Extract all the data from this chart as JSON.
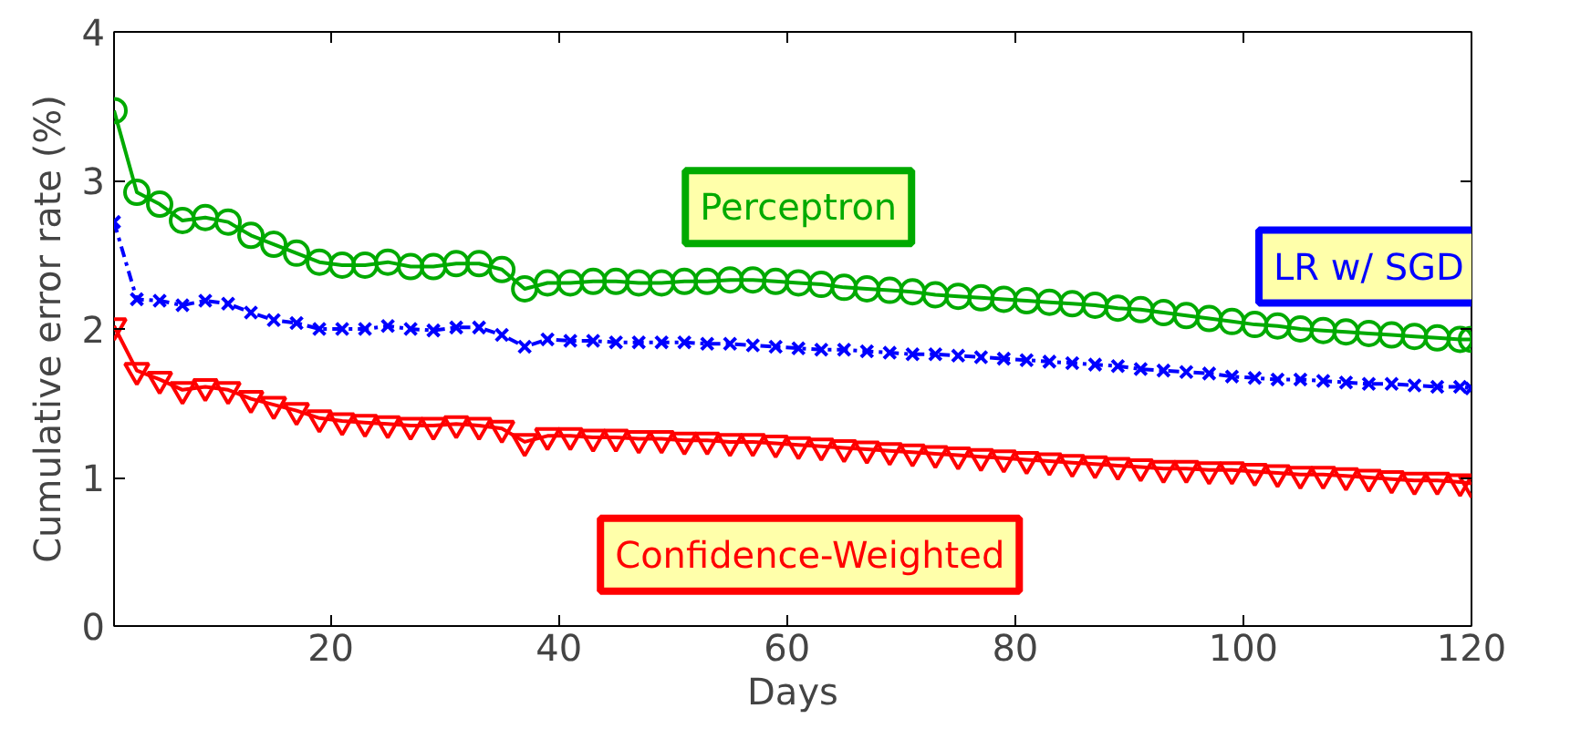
{
  "chart_data": {
    "type": "line",
    "xlabel": "Days",
    "ylabel": "Cumulative error rate (%)",
    "x": [
      1,
      3,
      5,
      7,
      9,
      11,
      13,
      15,
      17,
      19,
      21,
      23,
      25,
      27,
      29,
      31,
      33,
      35,
      37,
      39,
      41,
      43,
      45,
      47,
      49,
      51,
      53,
      55,
      57,
      59,
      61,
      63,
      65,
      67,
      69,
      71,
      73,
      75,
      77,
      79,
      81,
      83,
      85,
      87,
      89,
      91,
      93,
      95,
      97,
      99,
      101,
      103,
      105,
      107,
      109,
      111,
      113,
      115,
      117,
      119,
      120
    ],
    "xlim": [
      1,
      120
    ],
    "xticks": [
      20,
      40,
      60,
      80,
      100,
      120
    ],
    "ylim": [
      0,
      4
    ],
    "yticks": [
      0,
      1,
      2,
      3,
      4
    ],
    "grid": false,
    "legend": false,
    "series": [
      {
        "name": "Perceptron",
        "color": "#00aa00",
        "marker": "circle",
        "line_style": "solid",
        "values": [
          3.47,
          2.92,
          2.84,
          2.73,
          2.75,
          2.72,
          2.63,
          2.57,
          2.51,
          2.45,
          2.43,
          2.43,
          2.45,
          2.42,
          2.42,
          2.44,
          2.44,
          2.4,
          2.27,
          2.31,
          2.31,
          2.32,
          2.32,
          2.31,
          2.31,
          2.32,
          2.32,
          2.33,
          2.33,
          2.32,
          2.31,
          2.3,
          2.28,
          2.27,
          2.26,
          2.25,
          2.23,
          2.22,
          2.21,
          2.2,
          2.19,
          2.18,
          2.17,
          2.16,
          2.14,
          2.13,
          2.11,
          2.09,
          2.07,
          2.05,
          2.03,
          2.02,
          2.0,
          1.99,
          1.98,
          1.97,
          1.96,
          1.95,
          1.94,
          1.93,
          1.93
        ]
      },
      {
        "name": "LR w/ SGD",
        "color": "#0000ff",
        "marker": "cross",
        "line_style": "dashdot",
        "values": [
          2.72,
          2.2,
          2.19,
          2.16,
          2.19,
          2.17,
          2.11,
          2.06,
          2.04,
          2.0,
          2.0,
          2.0,
          2.02,
          2.0,
          1.99,
          2.01,
          2.01,
          1.96,
          1.88,
          1.93,
          1.92,
          1.92,
          1.91,
          1.91,
          1.91,
          1.91,
          1.9,
          1.9,
          1.89,
          1.88,
          1.87,
          1.86,
          1.86,
          1.85,
          1.84,
          1.83,
          1.83,
          1.82,
          1.81,
          1.8,
          1.79,
          1.78,
          1.77,
          1.76,
          1.75,
          1.73,
          1.72,
          1.71,
          1.7,
          1.68,
          1.67,
          1.66,
          1.66,
          1.65,
          1.64,
          1.63,
          1.63,
          1.62,
          1.61,
          1.61,
          1.6
        ]
      },
      {
        "name": "Confidence-Weighted",
        "color": "#ff0000",
        "marker": "triangle",
        "line_style": "solid",
        "values": [
          2.02,
          1.72,
          1.66,
          1.59,
          1.61,
          1.59,
          1.53,
          1.49,
          1.45,
          1.4,
          1.38,
          1.37,
          1.36,
          1.35,
          1.35,
          1.36,
          1.35,
          1.33,
          1.24,
          1.28,
          1.28,
          1.27,
          1.27,
          1.26,
          1.26,
          1.25,
          1.25,
          1.24,
          1.24,
          1.23,
          1.22,
          1.21,
          1.2,
          1.19,
          1.18,
          1.17,
          1.16,
          1.15,
          1.14,
          1.13,
          1.12,
          1.11,
          1.1,
          1.09,
          1.08,
          1.07,
          1.06,
          1.06,
          1.05,
          1.05,
          1.04,
          1.03,
          1.02,
          1.02,
          1.01,
          1.0,
          0.99,
          0.98,
          0.98,
          0.97,
          0.96
        ]
      }
    ]
  }
}
